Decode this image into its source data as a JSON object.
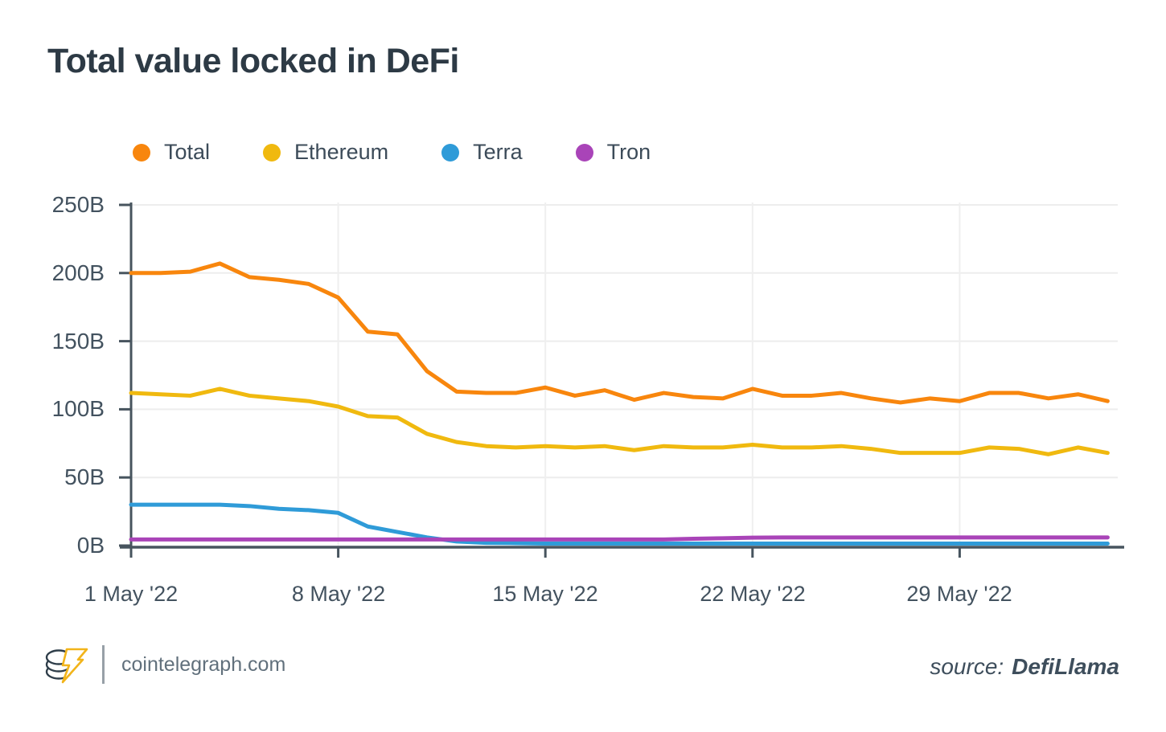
{
  "page": {
    "title": "Total value locked in DeFi"
  },
  "footer": {
    "logo": "cointelegraph-logo",
    "site": "cointelegraph.com",
    "source_label": "source:",
    "source_value": "DefiLlama"
  },
  "chart_data": {
    "type": "line",
    "title": "Total value locked in DeFi",
    "unit": "USD billions (B)",
    "grid": true,
    "legend_position": "top",
    "ylim": [
      0,
      250
    ],
    "ytick_values": [
      0,
      50,
      100,
      150,
      200,
      250
    ],
    "ytick_labels": [
      "0B",
      "50B",
      "100B",
      "150B",
      "200B",
      "250B"
    ],
    "xtick_days": [
      0,
      7,
      14,
      21,
      28
    ],
    "xtick_labels": [
      "1 May '22",
      "8 May '22",
      "15 May '22",
      "22 May '22",
      "29 May '22"
    ],
    "x": [
      "1 May '22",
      "2 May '22",
      "3 May '22",
      "4 May '22",
      "5 May '22",
      "6 May '22",
      "7 May '22",
      "8 May '22",
      "9 May '22",
      "10 May '22",
      "11 May '22",
      "12 May '22",
      "13 May '22",
      "14 May '22",
      "15 May '22",
      "16 May '22",
      "17 May '22",
      "18 May '22",
      "19 May '22",
      "20 May '22",
      "21 May '22",
      "22 May '22",
      "23 May '22",
      "24 May '22",
      "25 May '22",
      "26 May '22",
      "27 May '22",
      "28 May '22",
      "29 May '22",
      "30 May '22",
      "31 May '22",
      "1 Jun '22",
      "2 Jun '22",
      "3 Jun '22"
    ],
    "series": [
      {
        "name": "Total",
        "color": "#F8860D",
        "values": [
          200,
          200,
          201,
          207,
          197,
          195,
          192,
          182,
          157,
          155,
          128,
          113,
          112,
          112,
          116,
          110,
          114,
          107,
          112,
          109,
          108,
          115,
          110,
          110,
          112,
          108,
          105,
          108,
          106,
          112,
          112,
          108,
          111,
          106
        ]
      },
      {
        "name": "Ethereum",
        "color": "#F0B90F",
        "values": [
          112,
          111,
          110,
          115,
          110,
          108,
          106,
          102,
          95,
          94,
          82,
          76,
          73,
          72,
          73,
          72,
          73,
          70,
          73,
          72,
          72,
          74,
          72,
          72,
          73,
          71,
          68,
          68,
          68,
          72,
          71,
          67,
          72,
          68
        ]
      },
      {
        "name": "Terra",
        "color": "#2F9BD8",
        "values": [
          30,
          30,
          30,
          30,
          29,
          27,
          26,
          24,
          14,
          10,
          6,
          3,
          2,
          1.8,
          1.5,
          1.5,
          1.5,
          1.5,
          1.5,
          1.5,
          1.5,
          1.5,
          1.5,
          1.5,
          1.5,
          1.5,
          1.5,
          1.5,
          1.5,
          1.5,
          1.5,
          1.5,
          1.5,
          1.5
        ]
      },
      {
        "name": "Tron",
        "color": "#A944B8",
        "values": [
          4.5,
          4.5,
          4.5,
          4.5,
          4.5,
          4.5,
          4.5,
          4.5,
          4.5,
          4.5,
          4.5,
          4.5,
          4.5,
          4.5,
          4.5,
          4.5,
          4.5,
          4.5,
          4.5,
          5,
          5.4,
          5.8,
          6,
          6,
          6,
          6,
          6,
          6,
          6,
          6,
          6,
          6,
          6,
          6
        ]
      }
    ]
  }
}
